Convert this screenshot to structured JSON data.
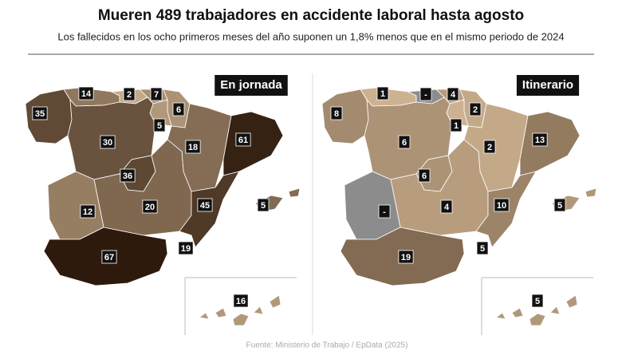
{
  "title": "Mueren 489 trabajadores en accidente laboral hasta agosto",
  "subtitle": "Los fallecidos en los ocho primeros meses del año suponen un 1,8% menos que en el mismo periodo de 2024",
  "source": "Fuente: Ministerio de Trabajo / EpData (2025)",
  "maps": [
    {
      "title": "En jornada",
      "values": [
        35,
        14,
        2,
        7,
        6,
        5,
        30,
        18,
        61,
        36,
        20,
        45,
        12,
        67,
        19,
        5,
        16
      ]
    },
    {
      "title": "Itinerario",
      "values": [
        8,
        1,
        null,
        4,
        2,
        1,
        6,
        2,
        13,
        6,
        4,
        10,
        null,
        19,
        5,
        5,
        5
      ],
      "value_labels": [
        null,
        null,
        "-",
        null,
        null,
        null,
        null,
        null,
        null,
        null,
        null,
        null,
        "-",
        null,
        null,
        null,
        null
      ]
    }
  ]
}
